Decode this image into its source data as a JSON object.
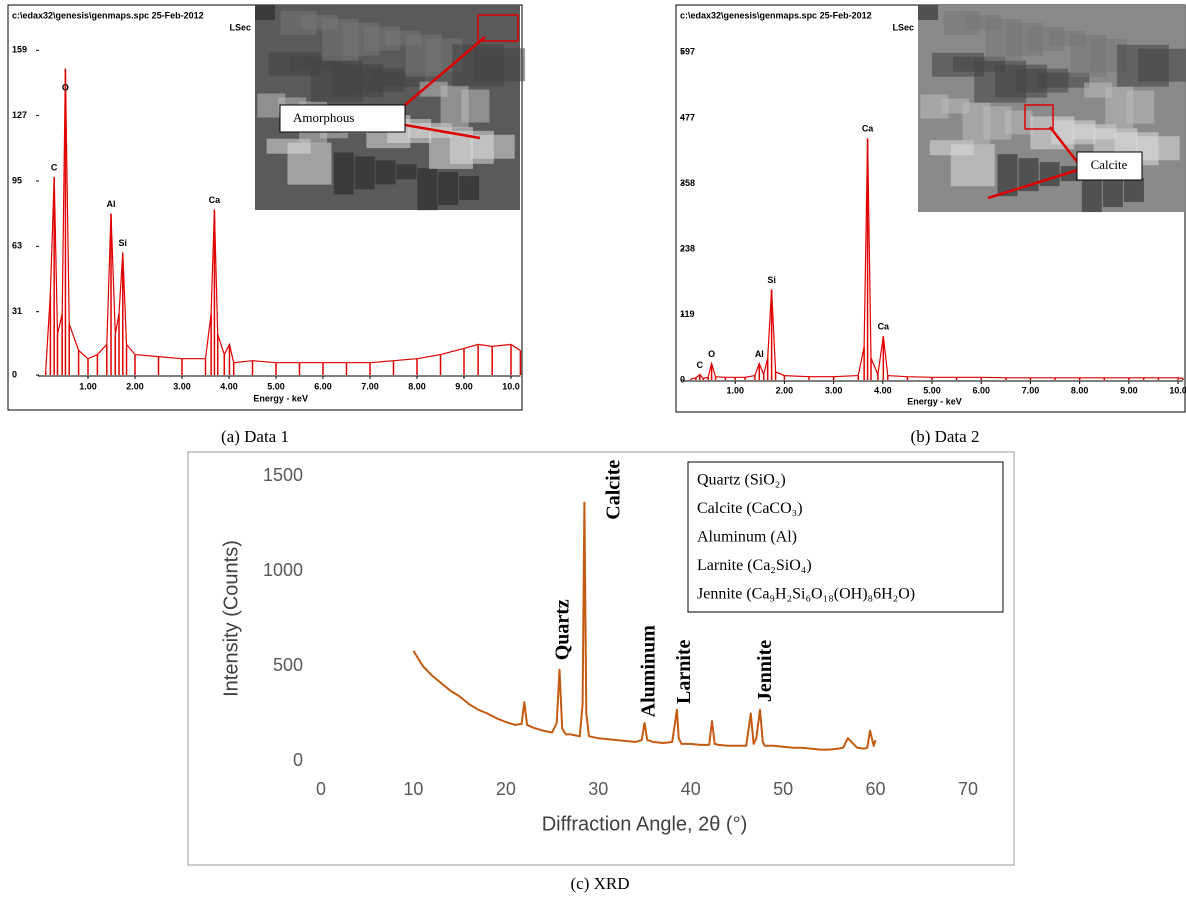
{
  "chart_data": [
    {
      "type": "spectrum",
      "caption": "(a) Data 1",
      "header": "c:\\edax32\\genesis\\genmaps.spc  25-Feb-2012",
      "header_right": "LSec",
      "x_label": "Energy - keV",
      "inset_label": "Amorphous",
      "color": "#e00000",
      "xlim": [
        0,
        10.2
      ],
      "ylim": [
        0,
        165
      ],
      "xticks": [
        {
          "value": 1,
          "label": "1.00"
        },
        {
          "value": 2,
          "label": "2.00"
        },
        {
          "value": 3,
          "label": "3.00"
        },
        {
          "value": 4,
          "label": "4.00"
        },
        {
          "value": 5,
          "label": "5.00"
        },
        {
          "value": 6,
          "label": "6.00"
        },
        {
          "value": 7,
          "label": "7.00"
        },
        {
          "value": 8,
          "label": "8.00"
        },
        {
          "value": 9,
          "label": "9.00"
        },
        {
          "value": 10,
          "label": "10.0"
        }
      ],
      "yticks": [
        0,
        31,
        63,
        95,
        127,
        159
      ],
      "x": [
        0.1,
        0.2,
        0.28,
        0.35,
        0.45,
        0.52,
        0.6,
        0.8,
        1.0,
        1.2,
        1.4,
        1.49,
        1.58,
        1.66,
        1.74,
        1.82,
        2.0,
        2.5,
        3.0,
        3.5,
        3.62,
        3.69,
        3.76,
        3.9,
        4.01,
        4.1,
        4.5,
        5.0,
        5.5,
        6.0,
        6.5,
        7.0,
        7.5,
        8.0,
        8.5,
        9.0,
        9.3,
        9.6,
        10.0,
        10.2
      ],
      "values": [
        2,
        40,
        97,
        20,
        30,
        150,
        25,
        12,
        8,
        10,
        15,
        79,
        20,
        30,
        60,
        15,
        10,
        9,
        8,
        8,
        30,
        81,
        20,
        10,
        15,
        6,
        7,
        6,
        6,
        6,
        6,
        6,
        7,
        8,
        10,
        13,
        15,
        14,
        15,
        12
      ],
      "peaks": [
        {
          "label": "C",
          "x": 0.28
        },
        {
          "label": "O",
          "x": 0.52
        },
        {
          "label": "Al",
          "x": 1.49
        },
        {
          "label": "Si",
          "x": 1.74
        },
        {
          "label": "Ca",
          "x": 3.69
        }
      ]
    },
    {
      "type": "spectrum",
      "caption": "(b) Data 2",
      "header": "c:\\edax32\\genesis\\genmaps.spc  25-Feb-2012",
      "header_right": "LSec",
      "x_label": "Energy - keV",
      "inset_label": "Calcite",
      "color": "#e00000",
      "xlim": [
        0,
        10.1
      ],
      "ylim": [
        0,
        610
      ],
      "xticks": [
        {
          "value": 1,
          "label": "1.00"
        },
        {
          "value": 2,
          "label": "2.00"
        },
        {
          "value": 3,
          "label": "3.00"
        },
        {
          "value": 4,
          "label": "4.00"
        },
        {
          "value": 5,
          "label": "5.00"
        },
        {
          "value": 6,
          "label": "6.00"
        },
        {
          "value": 7,
          "label": "7.00"
        },
        {
          "value": 8,
          "label": "8.00"
        },
        {
          "value": 9,
          "label": "9.00"
        },
        {
          "value": 10,
          "label": "10.0"
        }
      ],
      "yticks": [
        0,
        119,
        238,
        358,
        477,
        597
      ],
      "x": [
        0.1,
        0.2,
        0.28,
        0.35,
        0.45,
        0.52,
        0.6,
        0.8,
        1.0,
        1.2,
        1.4,
        1.49,
        1.58,
        1.66,
        1.74,
        1.82,
        2.0,
        2.5,
        3.0,
        3.5,
        3.62,
        3.69,
        3.76,
        3.9,
        4.01,
        4.1,
        4.5,
        5.0,
        5.5,
        6.0,
        6.5,
        7.0,
        7.5,
        8.0,
        8.5,
        9.0,
        9.3,
        9.6,
        10.0,
        10.1
      ],
      "values": [
        2,
        4,
        10,
        3,
        5,
        30,
        6,
        5,
        5,
        5,
        8,
        30,
        10,
        40,
        165,
        15,
        8,
        6,
        6,
        8,
        60,
        440,
        40,
        10,
        80,
        8,
        6,
        5,
        5,
        5,
        4,
        4,
        4,
        4,
        4,
        4,
        4,
        4,
        4,
        3
      ],
      "peaks": [
        {
          "label": "C",
          "x": 0.28
        },
        {
          "label": "O",
          "x": 0.52
        },
        {
          "label": "Al",
          "x": 1.49
        },
        {
          "label": "Si",
          "x": 1.74
        },
        {
          "label": "Ca",
          "x": 3.69
        },
        {
          "label": "Ca",
          "x": 4.01
        }
      ]
    },
    {
      "type": "line",
      "caption": "(c) XRD",
      "x_label": "Diffraction Angle, 2θ (°)",
      "y_label": "Intensity (Counts)",
      "color": "#c55a11",
      "xlim": [
        0,
        70
      ],
      "ylim": [
        0,
        1500
      ],
      "xticks": [
        0,
        10,
        20,
        30,
        40,
        50,
        60,
        70
      ],
      "yticks": [
        0,
        500,
        1000,
        1500
      ],
      "x": [
        10,
        10.5,
        11,
        12,
        13,
        14,
        15,
        16,
        17,
        18,
        19,
        20,
        21,
        21.7,
        22,
        22.3,
        23,
        24,
        25,
        25.5,
        25.8,
        26.1,
        26.5,
        27,
        28,
        28.3,
        28.5,
        28.7,
        29,
        30,
        31,
        32,
        33,
        34,
        34.7,
        35,
        35.3,
        36,
        37,
        38,
        38.3,
        38.5,
        38.7,
        39,
        40,
        41,
        42,
        42.3,
        42.6,
        43,
        44,
        45,
        46,
        46.5,
        46.8,
        47.1,
        47.5,
        47.8,
        48,
        49,
        50,
        51,
        52,
        53,
        54,
        55,
        56,
        56.5,
        57,
        58,
        58.8,
        59.1,
        59.4,
        59.8,
        60
      ],
      "values": [
        580,
        540,
        500,
        450,
        410,
        370,
        340,
        300,
        270,
        250,
        225,
        205,
        190,
        195,
        310,
        190,
        175,
        160,
        150,
        200,
        480,
        170,
        140,
        140,
        130,
        300,
        1360,
        250,
        130,
        120,
        115,
        110,
        105,
        100,
        110,
        200,
        110,
        100,
        95,
        100,
        200,
        270,
        120,
        90,
        90,
        85,
        85,
        210,
        90,
        85,
        80,
        80,
        80,
        250,
        90,
        120,
        270,
        100,
        80,
        80,
        75,
        70,
        70,
        65,
        60,
        60,
        65,
        70,
        120,
        70,
        65,
        70,
        160,
        80,
        110
      ],
      "annotations": [
        {
          "text": "Quartz",
          "x": 26.3,
          "y": 530
        },
        {
          "text": "Calcite",
          "x": 31.8,
          "y": 1270
        },
        {
          "text": "Aluminum",
          "x": 35.6,
          "y": 230
        },
        {
          "text": "Larnite",
          "x": 39.4,
          "y": 300
        },
        {
          "text": "Jennite",
          "x": 48.2,
          "y": 310
        }
      ],
      "legend": [
        "Quartz (SiO₂)",
        "Calcite (CaCO₃)",
        "Aluminum (Al)",
        "Larnite (Ca₂SiO₄)",
        "Jennite (Ca₉H₂Si₆O₁₈(OH)₈6H₂O)"
      ]
    }
  ]
}
